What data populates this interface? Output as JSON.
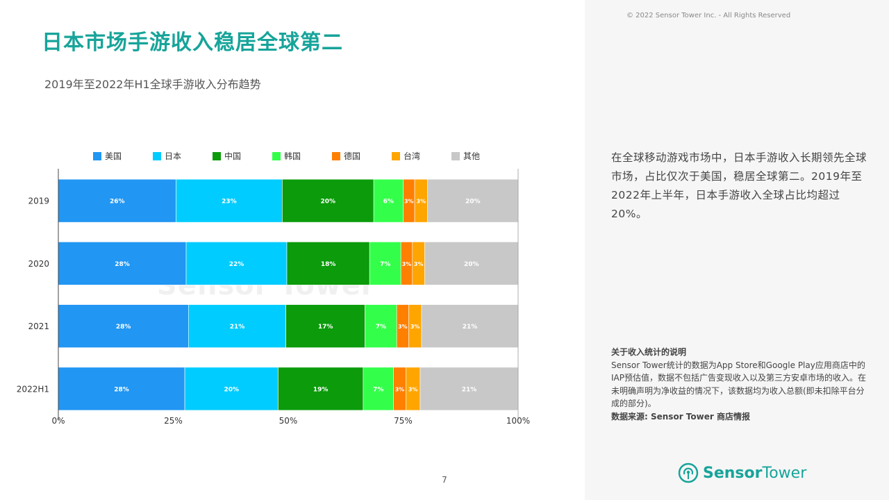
{
  "title": "日本市场手游收入稳居全球第二",
  "subtitle": "2019年至2022年H1全球手游收入分布趋势",
  "page_number": "7",
  "copyright": "© 2022 Sensor Tower Inc. - All Rights Reserved",
  "watermark": "Sensor Tower",
  "description": "在全球移动游戏市场中，日本手游收入长期领先全球市场，占比仅次于美国，稳居全球第二。2019年至2022年上半年，日本手游收入全球占比均超过20%。",
  "note": {
    "title": "关于收入统计的说明",
    "body": "Sensor Tower统计的数据为App Store和Google Play应用商店中的IAP预估值，数据不包括广告变现收入以及第三方安卓市场的收入。在未明确声明为净收益的情况下，该数据均为收入总额(即未扣除平台分成的部分)。",
    "source": "数据来源: Sensor Tower 商店情报"
  },
  "logo": {
    "brand": "Sensor",
    "brand2": "Tower",
    "icon": "sensor-tower-logo-icon",
    "color": "#17a49a"
  },
  "chart_data": {
    "type": "bar",
    "orientation": "horizontal",
    "stacked": true,
    "percent": true,
    "categories": [
      "2019",
      "2020",
      "2021",
      "2022H1"
    ],
    "series": [
      {
        "name": "美国",
        "color": "#2196f3",
        "values": [
          25.6,
          27.8,
          28.3,
          27.5
        ],
        "labels": [
          "26%",
          "28%",
          "28%",
          "28%"
        ]
      },
      {
        "name": "日本",
        "color": "#00ccff",
        "values": [
          23.1,
          21.9,
          21.2,
          20.3
        ],
        "labels": [
          "23%",
          "22%",
          "21%",
          "20%"
        ]
      },
      {
        "name": "中国",
        "color": "#0b9b0b",
        "values": [
          19.9,
          18.0,
          17.2,
          18.5
        ],
        "labels": [
          "20%",
          "18%",
          "17%",
          "19%"
        ]
      },
      {
        "name": "韩国",
        "color": "#33ff4a",
        "values": [
          6.4,
          6.8,
          6.9,
          6.6
        ],
        "labels": [
          "6%",
          "7%",
          "7%",
          "7%"
        ]
      },
      {
        "name": "德国",
        "color": "#ff7f00",
        "values": [
          2.5,
          2.5,
          2.6,
          2.7
        ],
        "labels": [
          "3%",
          "3%",
          "3%",
          "3%"
        ]
      },
      {
        "name": "台湾",
        "color": "#ffa500",
        "values": [
          2.8,
          2.7,
          2.8,
          3.1
        ],
        "labels": [
          "3%",
          "3%",
          "3%",
          "3%"
        ]
      },
      {
        "name": "其他",
        "color": "#c8c8c8",
        "values": [
          19.7,
          20.3,
          21.0,
          21.3
        ],
        "labels": [
          "20%",
          "20%",
          "21%",
          "21%"
        ]
      }
    ],
    "x_ticks": [
      "0%",
      "25%",
      "50%",
      "75%",
      "100%"
    ],
    "xlim": [
      0,
      100
    ],
    "legend_position": "top",
    "grid": false
  }
}
